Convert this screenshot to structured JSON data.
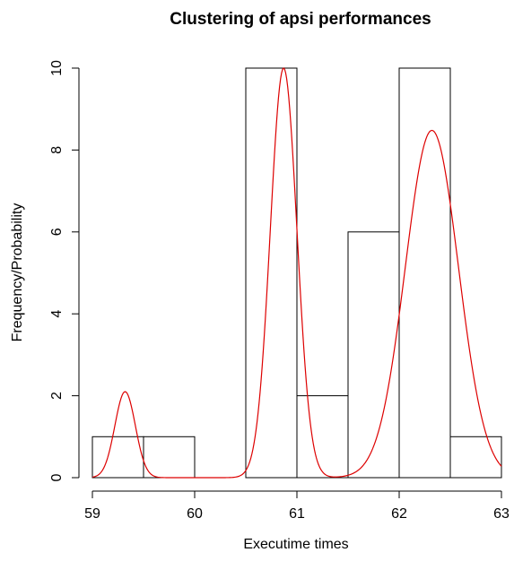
{
  "chart_data": {
    "type": "bar",
    "title": "Clustering of apsi performances",
    "xlabel": "Executime times",
    "ylabel": "Frequency/Probability",
    "xlim": [
      59,
      63
    ],
    "ylim": [
      0,
      10
    ],
    "x_ticks": [
      59,
      60,
      61,
      62,
      63
    ],
    "y_ticks": [
      0,
      2,
      4,
      6,
      8,
      10
    ],
    "grid": false,
    "bins": [
      {
        "start": 59.0,
        "end": 59.5,
        "count": 1
      },
      {
        "start": 59.5,
        "end": 60.0,
        "count": 1
      },
      {
        "start": 60.0,
        "end": 60.5,
        "count": 0
      },
      {
        "start": 60.5,
        "end": 61.0,
        "count": 10
      },
      {
        "start": 61.0,
        "end": 61.5,
        "count": 2
      },
      {
        "start": 61.5,
        "end": 62.0,
        "count": 6
      },
      {
        "start": 62.0,
        "end": 62.5,
        "count": 10
      },
      {
        "start": 62.5,
        "end": 63.0,
        "count": 1
      }
    ],
    "density_curve": {
      "color": "#dd0000",
      "components": [
        {
          "mean": 59.32,
          "sd": 0.1,
          "peak": 2.1
        },
        {
          "mean": 60.87,
          "sd": 0.13,
          "peak": 10.0
        },
        {
          "mean": 62.32,
          "sd": 0.26,
          "peak": 8.48
        }
      ]
    },
    "bar_color": "#000000"
  }
}
